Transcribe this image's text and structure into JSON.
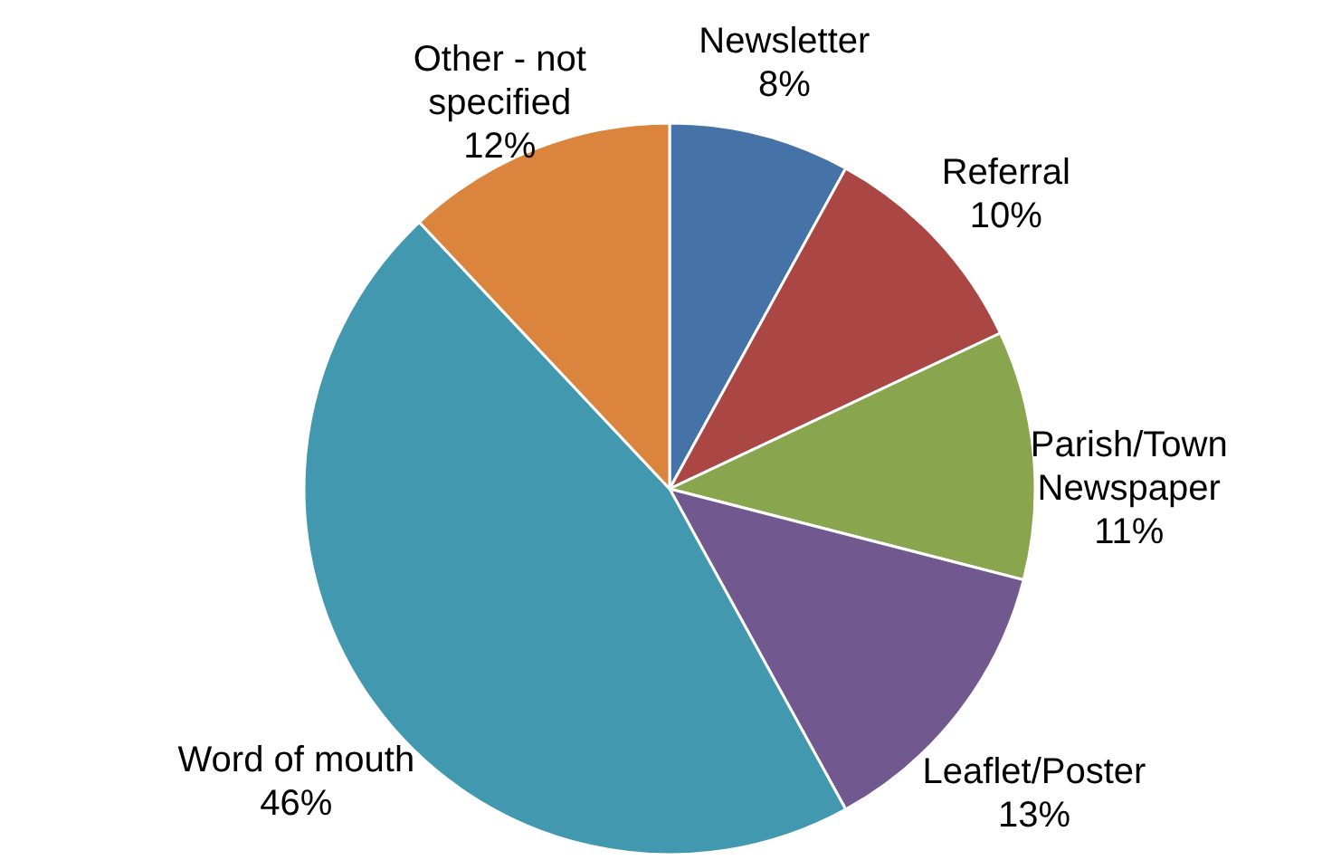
{
  "chart_data": {
    "type": "pie",
    "categories": [
      "Newsletter",
      "Referral",
      "Parish/Town Newspaper",
      "Leaflet/Poster",
      "Word of mouth",
      "Other - not specified"
    ],
    "values": [
      8,
      10,
      11,
      13,
      46,
      12
    ],
    "value_labels": [
      "8%",
      "10%",
      "11%",
      "13%",
      "46%",
      "12%"
    ],
    "colors": [
      "#4572a7",
      "#aa4643",
      "#89a54e",
      "#71588f",
      "#4198af",
      "#db843d"
    ]
  }
}
